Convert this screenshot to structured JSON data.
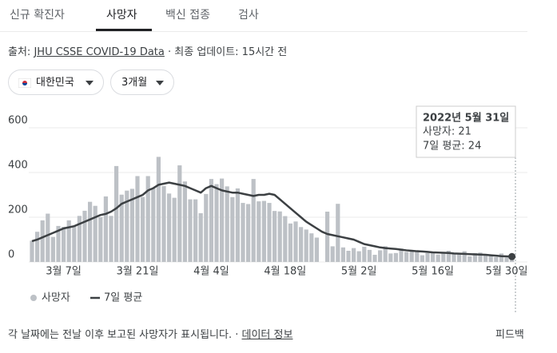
{
  "tabs": [
    "신규 확진자",
    "사망자",
    "백신 접종",
    "검사"
  ],
  "source": {
    "label": "출처:",
    "link": "JHU CSSE COVID-19 Data",
    "updated": "· 최종 업데이트: 15시간 전"
  },
  "filters": [
    "대한민국",
    "3개월"
  ],
  "chart_data": {
    "type": "bar-line",
    "categories": [
      null,
      null,
      null,
      null,
      null,
      null,
      "3월 7일",
      null,
      null,
      null,
      null,
      null,
      null,
      null,
      null,
      null,
      null,
      null,
      null,
      null,
      "3월 21일",
      null,
      null,
      null,
      null,
      null,
      null,
      null,
      null,
      null,
      null,
      null,
      null,
      null,
      "4월 4일",
      null,
      null,
      null,
      null,
      null,
      null,
      null,
      null,
      null,
      null,
      null,
      null,
      null,
      "4월 18일",
      null,
      null,
      null,
      null,
      null,
      null,
      null,
      null,
      null,
      null,
      null,
      null,
      null,
      "5월 2일",
      null,
      null,
      null,
      null,
      null,
      null,
      null,
      null,
      null,
      null,
      null,
      null,
      null,
      "5월 16일",
      null,
      null,
      null,
      null,
      null,
      null,
      null,
      null,
      null,
      null,
      null,
      null,
      null,
      "5월 30일",
      null
    ],
    "series": [
      {
        "name": "사망자",
        "color": "#bdc1c6",
        "values": [
          95,
          135,
          186,
          216,
          112,
          161,
          157,
          186,
          158,
          206,
          229,
          269,
          251,
          200,
          293,
          206,
          429,
          301,
          319,
          327,
          384,
          291,
          384,
          330,
          470,
          339,
          306,
          287,
          432,
          360,
          280,
          280,
          218,
          304,
          371,
          348,
          373,
          338,
          290,
          329,
          264,
          259,
          371,
          271,
          273,
          264,
          228,
          226,
          205,
          172,
          181,
          156,
          145,
          128,
          109,
          null,
          225,
          70,
          260,
          65,
          50,
          62,
          48,
          68,
          54,
          32,
          52,
          70,
          38,
          40,
          60,
          45,
          50,
          48,
          30,
          40,
          45,
          33,
          45,
          50,
          38,
          35,
          48,
          25,
          40,
          42,
          35,
          30,
          22,
          38,
          20,
          21
        ]
      },
      {
        "name": "7일 평균",
        "color": "#3c4043",
        "values": [
          93,
          100,
          110,
          120,
          130,
          140,
          150,
          155,
          160,
          170,
          180,
          190,
          200,
          210,
          215,
          225,
          240,
          260,
          270,
          280,
          290,
          300,
          320,
          330,
          345,
          350,
          355,
          350,
          345,
          340,
          330,
          320,
          310,
          330,
          340,
          330,
          320,
          315,
          310,
          310,
          305,
          300,
          295,
          300,
          300,
          305,
          300,
          280,
          260,
          240,
          220,
          200,
          180,
          165,
          150,
          135,
          125,
          120,
          115,
          110,
          105,
          100,
          90,
          80,
          75,
          70,
          65,
          62,
          60,
          58,
          55,
          52,
          50,
          48,
          47,
          45,
          43,
          42,
          41,
          40,
          38,
          37,
          36,
          35,
          34,
          33,
          32,
          30,
          28,
          26,
          25,
          24
        ]
      }
    ],
    "ylim": [
      0,
      600
    ],
    "yticks": [
      0,
      200,
      400,
      600
    ],
    "grid": true,
    "tooltip": {
      "date": "2022년 5월 31일",
      "lines": [
        "사망자: 21",
        "7일 평균: 24"
      ]
    }
  },
  "footer": {
    "note": "각 날짜에는 전날 이후 보고된 사망자가 표시됩니다. ·",
    "link": "데이터 정보",
    "feedback": "피드백"
  }
}
